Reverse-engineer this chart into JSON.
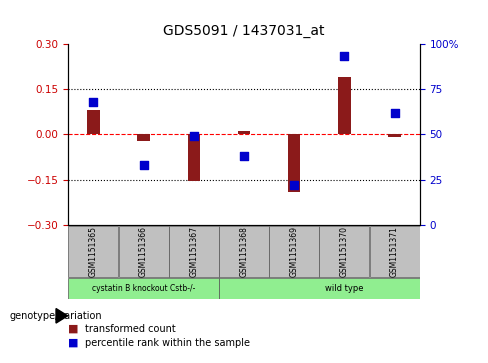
{
  "title": "GDS5091 / 1437031_at",
  "samples": [
    "GSM1151365",
    "GSM1151366",
    "GSM1151367",
    "GSM1151368",
    "GSM1151369",
    "GSM1151370",
    "GSM1151371"
  ],
  "red_values": [
    0.082,
    -0.022,
    -0.155,
    0.01,
    -0.19,
    0.19,
    -0.01
  ],
  "blue_values": [
    68,
    33,
    49,
    38,
    22,
    93,
    62
  ],
  "ylim_left": [
    -0.3,
    0.3
  ],
  "ylim_right": [
    0,
    100
  ],
  "yticks_left": [
    -0.3,
    -0.15,
    0,
    0.15,
    0.3
  ],
  "yticks_right": [
    0,
    25,
    50,
    75,
    100
  ],
  "ytick_labels_right": [
    "0",
    "25",
    "50",
    "75",
    "100%"
  ],
  "groups": [
    {
      "label": "cystatin B knockout Cstb-/-",
      "start": 0,
      "end": 2,
      "color": "#90EE90"
    },
    {
      "label": "wild type",
      "start": 3,
      "end": 6,
      "color": "#90EE90"
    }
  ],
  "bar_color": "#8B1A1A",
  "dot_color": "#0000CC",
  "bar_width": 0.25,
  "dot_size": 28,
  "legend_items": [
    {
      "color": "#8B1A1A",
      "label": "transformed count"
    },
    {
      "color": "#0000CC",
      "label": "percentile rank within the sample"
    }
  ],
  "tick_color_left": "#CC0000",
  "tick_color_right": "#0000CC",
  "background_color": "#ffffff",
  "gray_color": "#C0C0C0"
}
